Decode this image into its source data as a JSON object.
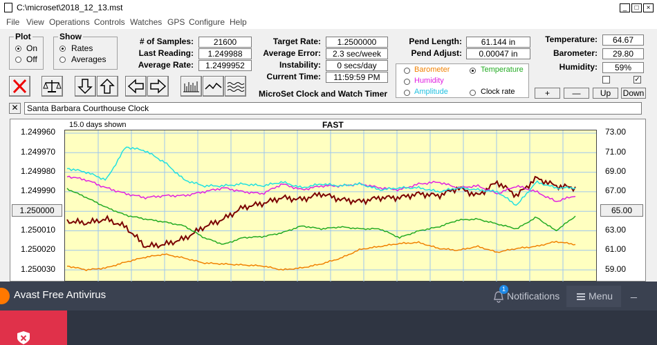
{
  "window": {
    "title": "C:\\microset\\2018_12_13.mst"
  },
  "menu": [
    "File",
    "View",
    "Operations",
    "Controls",
    "Watches",
    "GPS",
    "Configure",
    "Help"
  ],
  "plot_group": {
    "title": "Plot",
    "on": "On",
    "off": "Off",
    "selected": "On"
  },
  "show_group": {
    "title": "Show",
    "rates": "Rates",
    "averages": "Averages",
    "selected": "Rates"
  },
  "stats": {
    "samples_label": "# of Samples:",
    "samples": "21600",
    "last_label": "Last Reading:",
    "last": "1.249988",
    "avg_label": "Average Rate:",
    "avg": "1.2499952",
    "target_label": "Target Rate:",
    "target": "1.2500000",
    "avgerr_label": "Average Error:",
    "avgerr": "2.3 sec/week",
    "instab_label": "Instability:",
    "instab": "0 secs/day",
    "curtime_label": "Current Time:",
    "curtime": "11:59:59 PM",
    "pendlen_label": "Pend Length:",
    "pendlen": "61.144 in",
    "pendadj_label": "Pend Adjust:",
    "pendadj": "0.00047 in",
    "temp_label": "Temperature:",
    "temp": "64.67",
    "baro_label": "Barometer:",
    "baro": "29.80",
    "hum_label": "Humidity:",
    "hum": "59%"
  },
  "app_caption": "MicroSet Clock and Watch Timer",
  "series_select": {
    "barometer": "Barometer",
    "temperature": "Temperature",
    "humidity": "Humidity",
    "amplitude": "Amplitude",
    "clockrate": "Clock rate",
    "selected": "Temperature"
  },
  "aux_buttons": {
    "plus": "+",
    "minus": "—",
    "up": "Up",
    "down": "Down"
  },
  "clock_name": "Santa Barbara Courthouse Clock",
  "chart_data": {
    "type": "line",
    "title": "FAST",
    "subtitle": "15.0 days shown",
    "left_ticks": [
      "1.249960",
      "1.249970",
      "1.249980",
      "1.249990",
      "1.250000",
      "1.250010",
      "1.250020",
      "1.250030"
    ],
    "left_marker": "1.250000",
    "right_ticks": [
      "73.00",
      "71.00",
      "69.00",
      "67.00",
      "65.00",
      "63.00",
      "61.00",
      "59.00"
    ],
    "right_marker": "65.00",
    "colors": {
      "rate": "#7a0000",
      "temperature": "#22aa22",
      "humidity": "#e020e0",
      "amplitude": "#20e0e0",
      "barometer": "#f08000"
    },
    "series": [
      {
        "key": "rate",
        "color": "#7a0000",
        "values": [
          1.250005,
          1.250006,
          1.250004,
          1.250008,
          1.250018,
          1.250017,
          1.250014,
          1.250008,
          1.250004,
          1.249998,
          1.249996,
          1.249993,
          1.249994,
          1.249991,
          1.249994,
          1.249995,
          1.249993,
          1.249993,
          1.249991,
          1.249992,
          1.249988,
          1.249992,
          1.249985,
          1.249992,
          1.249983,
          1.249987,
          1.249988
        ]
      },
      {
        "key": "temperature",
        "values": [
          67.3,
          66.4,
          65.4,
          64.6,
          64.2,
          63.9,
          63.5,
          62.3,
          61.6,
          62.3,
          62.4,
          62.8,
          63.5,
          63.2,
          63.4,
          63.2,
          63.2,
          62.3,
          63.0,
          63.4,
          64.1,
          64.2,
          63.7,
          63.2,
          64.4,
          63.0,
          64.5
        ]
      },
      {
        "key": "humidity",
        "values": [
          1.249982,
          1.249984,
          1.249988,
          1.249991,
          1.249993,
          1.249992,
          1.249992,
          1.24999,
          1.249988,
          1.24999,
          1.249991,
          1.249986,
          1.249989,
          1.249987,
          1.249987,
          1.249986,
          1.249988,
          1.249989,
          1.249986,
          1.249985,
          1.249988,
          1.249987,
          1.249991,
          1.249987,
          1.24999,
          1.249995,
          1.249992
        ]
      },
      {
        "key": "amplitude",
        "values": [
          1.249978,
          1.24998,
          1.249984,
          1.249967,
          1.249969,
          1.249975,
          1.249984,
          1.249987,
          1.249987,
          1.249986,
          1.249987,
          1.249985,
          1.249988,
          1.249986,
          1.249987,
          1.249986,
          1.249989,
          1.249988,
          1.249988,
          1.24999,
          1.249988,
          1.249989,
          1.24999,
          1.249997,
          1.249985,
          1.249988,
          1.249988
        ]
      },
      {
        "key": "barometer",
        "values": [
          59.4,
          59.0,
          59.2,
          59.8,
          60.3,
          60.6,
          60.2,
          59.7,
          59.6,
          59.5,
          59.4,
          59.0,
          59.2,
          59.6,
          60.2,
          61.1,
          61.4,
          61.7,
          61.8,
          61.2,
          61.0,
          61.4,
          60.8,
          61.2,
          61.4,
          61.9,
          61.6
        ]
      }
    ]
  },
  "taskbar": {
    "app": "Avast Free Antivirus",
    "notifications": "Notifications",
    "badge": "1",
    "menu": "Menu"
  }
}
